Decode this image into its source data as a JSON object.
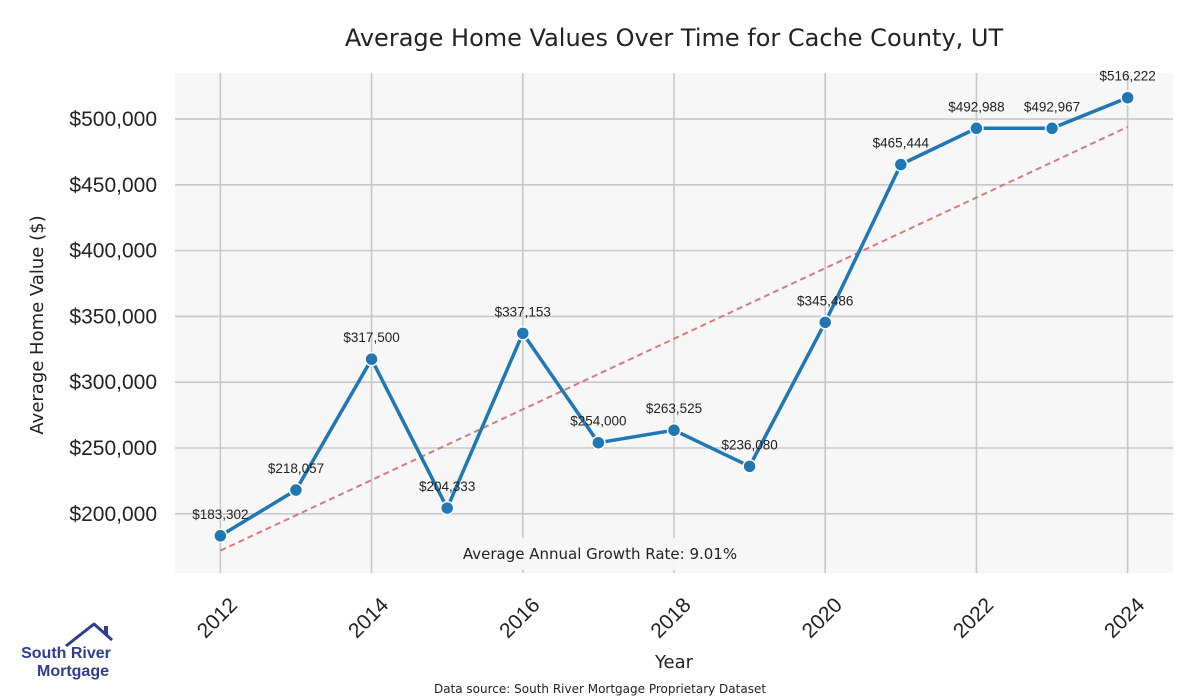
{
  "chart_data": {
    "type": "line",
    "title": "Average Home Values Over Time for Cache County, UT",
    "xlabel": "Year",
    "ylabel": "Average Home Value ($)",
    "x": [
      2012,
      2013,
      2014,
      2015,
      2016,
      2017,
      2018,
      2019,
      2020,
      2021,
      2022,
      2023,
      2024
    ],
    "series": [
      {
        "values": [
          183302,
          218057,
          317500,
          204333,
          337153,
          254000,
          263525,
          236080,
          345486,
          465444,
          492988,
          492967,
          516222
        ],
        "labels": [
          "$183,302",
          "$218,057",
          "$317,500",
          "$204,333",
          "$337,153",
          "$254,000",
          "$263,525",
          "$236,080",
          "$345,486",
          "$465,444",
          "$492,988",
          "$492,967",
          "$516,222"
        ],
        "color": "#1f77b4"
      }
    ],
    "trendline": {
      "start": [
        2012,
        172000
      ],
      "end": [
        2024,
        494000
      ],
      "color": "#d47b7b",
      "style": "dashed"
    },
    "xlim": [
      2011.4,
      2024.6
    ],
    "ylim": [
      155000,
      535000
    ],
    "xticks": [
      2012,
      2014,
      2016,
      2018,
      2020,
      2022,
      2024
    ],
    "xtick_labels": [
      "2012",
      "2014",
      "2016",
      "2018",
      "2020",
      "2022",
      "2024"
    ],
    "yticks": [
      200000,
      250000,
      300000,
      350000,
      400000,
      450000,
      500000
    ],
    "ytick_labels": [
      "$200,000",
      "$250,000",
      "$300,000",
      "$350,000",
      "$400,000",
      "$450,000",
      "$500,000"
    ],
    "grid": true,
    "background": "#f7f7f7",
    "annotation": "Average Annual Growth Rate: 9.01%",
    "source": "Data source: South River Mortgage Proprietary Dataset"
  },
  "logo": {
    "line1": "South River",
    "line2": "Mortgage",
    "color": "#2d3f8f"
  }
}
